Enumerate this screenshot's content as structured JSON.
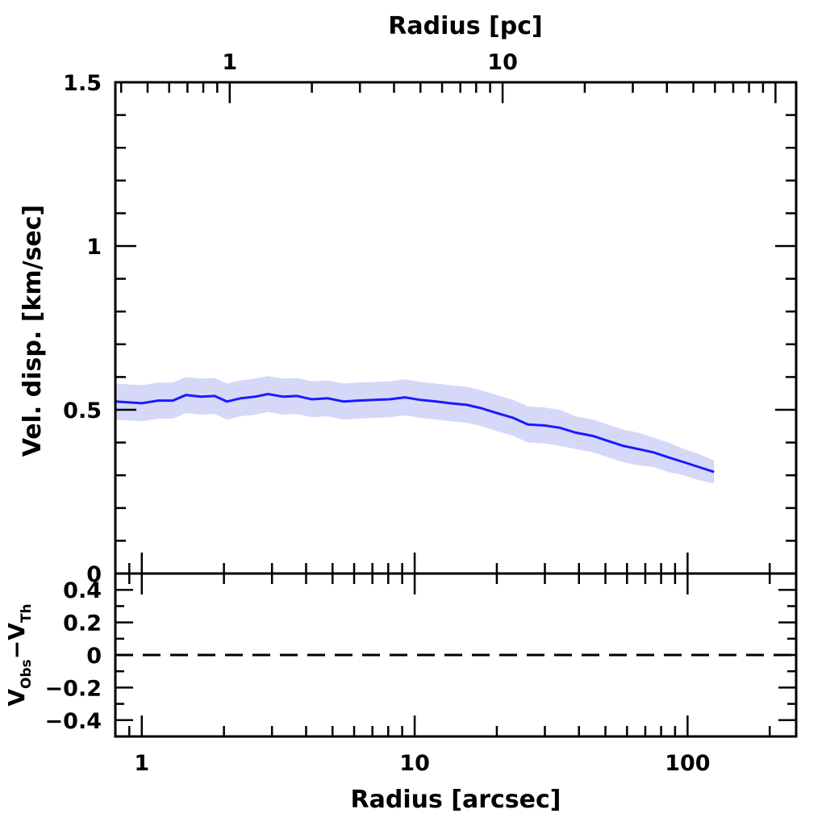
{
  "chart_data": {
    "type": "line",
    "x_scale": "log",
    "top_axis": {
      "label": "Radius [pc]",
      "tick_labels": [
        {
          "text": "1",
          "value": 2.1
        },
        {
          "text": "10",
          "value": 21
        }
      ]
    },
    "main_panel": {
      "ylabel": "Vel. disp. [km/sec]",
      "ylim": [
        0,
        1.5
      ],
      "yticks": [
        {
          "text": "0",
          "value": 0
        },
        {
          "text": "0.5",
          "value": 0.5
        },
        {
          "text": "1",
          "value": 1
        },
        {
          "text": "1.5",
          "value": 1.5
        }
      ],
      "series": [
        {
          "color": "#1a1aff",
          "band_color": "#d6d8f8",
          "x": [
            0.8,
            1.0,
            1.15,
            1.3,
            1.45,
            1.65,
            1.85,
            2.05,
            2.3,
            2.6,
            2.9,
            3.3,
            3.7,
            4.2,
            4.8,
            5.5,
            6.2,
            7.1,
            8.1,
            9.2,
            10.5,
            12,
            13.5,
            15.5,
            17.5,
            20,
            23,
            26,
            30,
            34,
            39,
            45,
            51,
            58,
            66,
            75,
            85,
            97,
            110,
            125
          ],
          "values": [
            0.525,
            0.52,
            0.528,
            0.528,
            0.545,
            0.54,
            0.542,
            0.525,
            0.535,
            0.54,
            0.548,
            0.54,
            0.542,
            0.532,
            0.535,
            0.525,
            0.528,
            0.53,
            0.532,
            0.538,
            0.53,
            0.525,
            0.52,
            0.515,
            0.505,
            0.49,
            0.475,
            0.455,
            0.452,
            0.445,
            0.43,
            0.42,
            0.405,
            0.39,
            0.38,
            0.37,
            0.355,
            0.34,
            0.325,
            0.31
          ],
          "err": [
            0.055,
            0.055,
            0.055,
            0.055,
            0.055,
            0.055,
            0.055,
            0.055,
            0.055,
            0.055,
            0.055,
            0.055,
            0.055,
            0.055,
            0.055,
            0.055,
            0.055,
            0.055,
            0.055,
            0.055,
            0.055,
            0.055,
            0.055,
            0.055,
            0.055,
            0.055,
            0.055,
            0.055,
            0.055,
            0.055,
            0.05,
            0.05,
            0.05,
            0.05,
            0.05,
            0.045,
            0.045,
            0.04,
            0.04,
            0.035
          ]
        }
      ]
    },
    "residual_panel": {
      "ylabel": "V_Obs−V_Th",
      "ylabel_main": "V",
      "ylabel_sub1": "Obs",
      "ylabel_minus": "−V",
      "ylabel_sub2": "Th",
      "ylim": [
        -0.5,
        0.5
      ],
      "yticks": [
        {
          "text": "0.4",
          "value": 0.4
        },
        {
          "text": "0.2",
          "value": 0.2
        },
        {
          "text": "0",
          "value": 0
        },
        {
          "text": "−0.2",
          "value": -0.2
        },
        {
          "text": "−0.4",
          "value": -0.4
        }
      ],
      "reference_line": {
        "value": 0,
        "style": "dashed"
      }
    },
    "bottom_axis": {
      "label": "Radius [arcsec]",
      "xlim": [
        0.8,
        250
      ],
      "tick_labels": [
        {
          "text": "1",
          "value": 1
        },
        {
          "text": "10",
          "value": 10
        },
        {
          "text": "100",
          "value": 100
        }
      ]
    }
  }
}
